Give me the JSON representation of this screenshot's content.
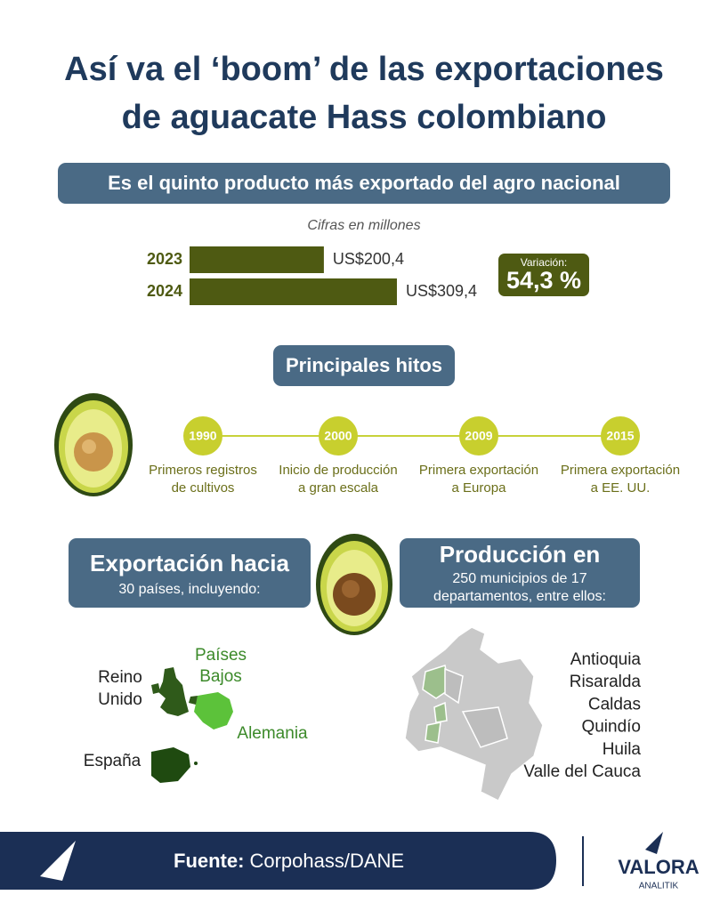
{
  "header": {
    "title_lines": [
      "Así va el ‘boom’ de las exportaciones",
      "de aguacate Hass colombiano"
    ]
  },
  "chart_data": {
    "type": "bar",
    "orientation": "horizontal",
    "title": "Es el quinto producto más exportado del agro nacional",
    "subtitle": "Cifras en millones",
    "categories": [
      "2023",
      "2024"
    ],
    "values": [
      200.4,
      309.4
    ],
    "value_labels": [
      "US$200,4",
      "US$309,4"
    ],
    "color": "#4e5a12"
  },
  "variation": {
    "label": "Variación:",
    "value": "54,3 %"
  },
  "milestones": {
    "title": "Principales hitos",
    "items": [
      {
        "year": "1990",
        "lines": [
          "Primeros registros",
          "de cultivos"
        ]
      },
      {
        "year": "2000",
        "lines": [
          "Inicio de producción",
          "a gran escala"
        ]
      },
      {
        "year": "2009",
        "lines": [
          "Primera exportación",
          "a Europa"
        ]
      },
      {
        "year": "2015",
        "lines": [
          "Primera exportación",
          "a EE. UU."
        ]
      }
    ]
  },
  "exports": {
    "title": "Exportación hacia",
    "subtitle": "30 países, incluyendo:",
    "countries": [
      {
        "lines": [
          "Reino",
          "Unido"
        ]
      },
      {
        "lines": [
          "Países",
          "Bajos"
        ]
      },
      {
        "lines": [
          "Alemania"
        ]
      },
      {
        "lines": [
          "España"
        ]
      }
    ]
  },
  "production": {
    "title": "Producción en",
    "lines": [
      "250 municipios de 17",
      "departamentos, entre ellos:"
    ],
    "departments": [
      "Antioquia",
      "Risaralda",
      "Caldas",
      "Quindío",
      "Huila",
      "Valle del Cauca"
    ]
  },
  "footer": {
    "source_label": "Fuente:",
    "source": "Corpohass/DANE",
    "brand": "VALORA",
    "brand_sub": "ANALITIK"
  }
}
